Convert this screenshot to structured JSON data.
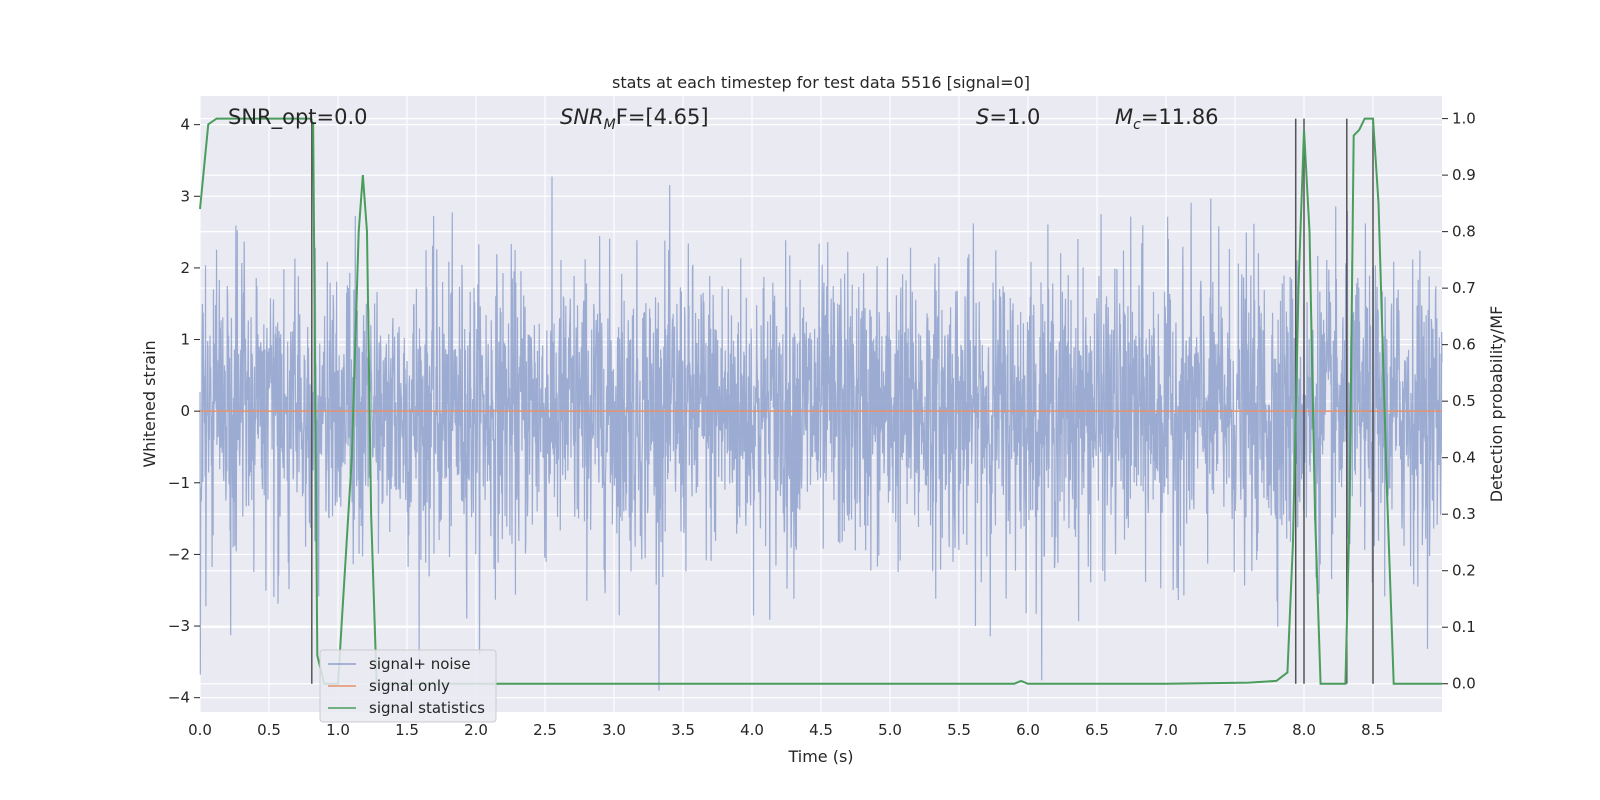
{
  "chart_data": {
    "type": "line",
    "title": "stats at each timestep for test data 5516 [signal=0]",
    "xlabel": "Time (s)",
    "ylabel": "Whitened strain",
    "y2label": "Detection probability/MF",
    "xlim": [
      0.0,
      9.0
    ],
    "ylim": [
      -4.2,
      4.4
    ],
    "y2lim": [
      -0.05,
      1.04
    ],
    "x_ticks": [
      "0.0",
      "0.5",
      "1.0",
      "1.5",
      "2.0",
      "2.5",
      "3.0",
      "3.5",
      "4.0",
      "4.5",
      "5.0",
      "5.5",
      "6.0",
      "6.5",
      "7.0",
      "7.5",
      "8.0",
      "8.5"
    ],
    "y_ticks": [
      "4",
      "3",
      "2",
      "1",
      "0",
      "−1",
      "−2",
      "−3",
      "−4"
    ],
    "y2_ticks": [
      "1.0",
      "0.9",
      "0.8",
      "0.7",
      "0.6",
      "0.5",
      "0.4",
      "0.3",
      "0.2",
      "0.1",
      "0.0"
    ],
    "grid": true,
    "legend_position": "lower-left",
    "annotations": {
      "snr_opt": "SNR_opt=0.0",
      "snr_mf_sym": "SNR",
      "snr_mf_sub": "M",
      "snr_mf_rest": "F=[4.65]",
      "s_sym": "S",
      "s_rest": "=1.0",
      "mc_sym": "M",
      "mc_sub": "c",
      "mc_rest": "=11.86"
    },
    "series": [
      {
        "name": "signal+ noise",
        "color": "#8da0cb",
        "noise_std": 1.0,
        "x_start": 0.0,
        "x_end": 9.0
      },
      {
        "name": "signal only",
        "color": "#e5926b",
        "values_constant": 0.0
      },
      {
        "name": "signal statistics",
        "color": "#4a9d5c",
        "axis": "right",
        "x": [
          0.0,
          0.06,
          0.12,
          0.2,
          0.4,
          0.6,
          0.75,
          0.8,
          0.82,
          0.85,
          0.9,
          1.0,
          1.1,
          1.15,
          1.18,
          1.21,
          1.24,
          1.28,
          1.4,
          2.0,
          3.0,
          4.0,
          5.0,
          5.9,
          5.95,
          6.0,
          7.0,
          7.6,
          7.8,
          7.88,
          7.92,
          7.96,
          8.0,
          8.04,
          8.08,
          8.12,
          8.2,
          8.3,
          8.33,
          8.36,
          8.4,
          8.44,
          8.5,
          8.54,
          8.6,
          8.65,
          9.0
        ],
        "values": [
          0.84,
          0.99,
          1.0,
          1.0,
          1.0,
          1.0,
          1.0,
          1.0,
          0.99,
          0.05,
          0.0,
          0.0,
          0.4,
          0.8,
          0.9,
          0.8,
          0.3,
          0.0,
          0.0,
          0.0,
          0.0,
          0.0,
          0.0,
          0.0,
          0.005,
          0.0,
          0.0,
          0.002,
          0.005,
          0.02,
          0.25,
          0.7,
          0.98,
          0.8,
          0.3,
          0.0,
          0.0,
          0.0,
          0.3,
          0.97,
          0.98,
          1.0,
          1.0,
          0.85,
          0.35,
          0.0,
          0.0
        ]
      }
    ],
    "vlines": {
      "color": "#555555",
      "x": [
        0.81,
        7.94,
        8.0,
        8.31,
        8.5
      ],
      "y2_range": [
        0.0,
        1.0
      ]
    }
  }
}
